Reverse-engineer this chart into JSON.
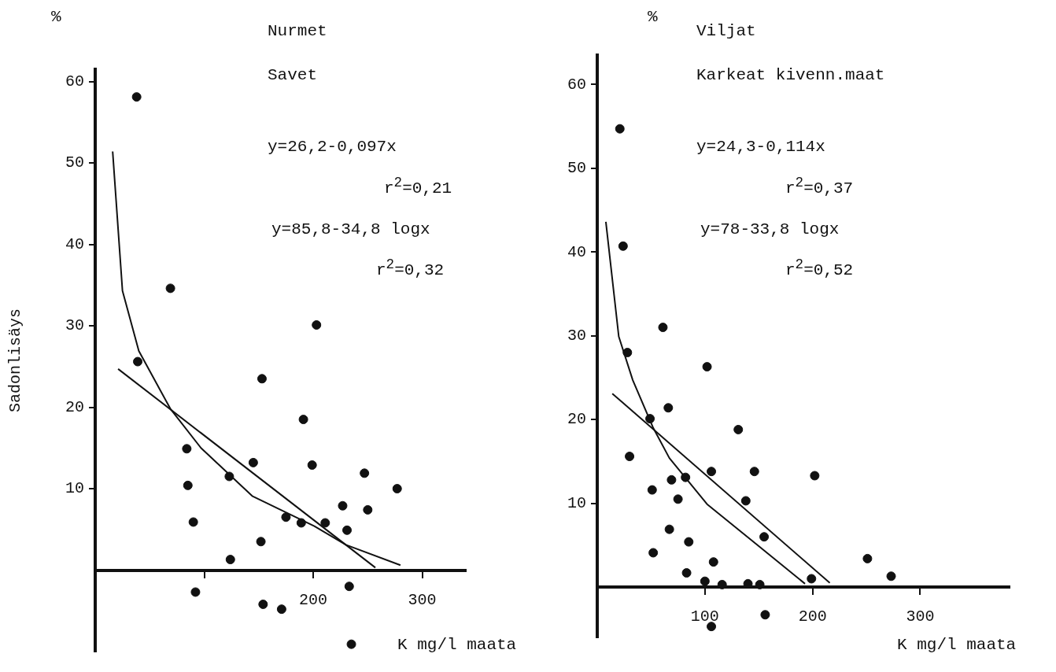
{
  "chart_data": [
    {
      "type": "scatter",
      "title": "Nurmet",
      "subtitle": "Savet",
      "xlabel": "K mg/l maata",
      "ylabel": "Sadonlisäys",
      "annotations": [
        "%",
        "y=26,2-0,097x",
        "r$^{2}$=0,21",
        "y=85,8-34,8 logx",
        "r$^{2}$=0,32"
      ],
      "xlim": [
        0,
        340
      ],
      "xticks": [
        {
          "value": 100,
          "label": null
        },
        200,
        300
      ],
      "ylim": [
        -10,
        61.5
      ],
      "yticks": [
        10,
        20,
        30,
        40,
        50,
        60
      ],
      "grid": false,
      "legend": false,
      "series": [
        {
          "type": "scatter",
          "marker": "circle",
          "color": "#111111",
          "x": [
            38,
            69,
            203,
            39,
            153,
            191,
            84,
            145,
            199,
            247,
            123,
            85,
            277,
            227,
            250,
            90,
            175,
            189,
            211,
            231,
            152,
            124,
            92,
            154,
            171,
            233,
            235
          ],
          "values": [
            58.1,
            34.6,
            30.1,
            25.6,
            23.5,
            18.5,
            14.9,
            13.2,
            12.9,
            11.9,
            11.5,
            10.4,
            10.0,
            7.9,
            7.4,
            5.9,
            6.5,
            5.8,
            5.8,
            4.9,
            3.5,
            1.3,
            -2.7,
            -4.2,
            -4.8,
            -2.0,
            -9.1
          ]
        },
        {
          "type": "line",
          "marker": "none",
          "line_style": "solid",
          "color": "#111111",
          "x": [
            21,
            257
          ],
          "values": [
            24.7,
            0.3
          ]
        },
        {
          "type": "line",
          "marker": "none",
          "line_style": "solid",
          "color": "#111111",
          "x": [
            16,
            25,
            40,
            69,
            97,
            144,
            201,
            230,
            280
          ],
          "values": [
            51.4,
            34.3,
            26.9,
            19.8,
            15.0,
            9.1,
            5.4,
            3.1,
            0.6
          ]
        }
      ]
    },
    {
      "type": "scatter",
      "title": "Viljat",
      "subtitle": "Karkeat kivenn.maat",
      "xlabel": "K mg/l maata",
      "annotations": [
        "%",
        "y=24,3-0,114x",
        "r$^{2}$=0,37",
        "y=78-33,8 logx",
        "r$^{2}$=0,52"
      ],
      "xlim": [
        0,
        383
      ],
      "xticks": [
        100,
        200,
        300
      ],
      "ylim": [
        -6,
        63.5
      ],
      "yticks": [
        10,
        20,
        30,
        40,
        50,
        60
      ],
      "grid": false,
      "legend": false,
      "series": [
        {
          "type": "scatter",
          "marker": "circle",
          "color": "#111111",
          "x": [
            21,
            24,
            61,
            28,
            102,
            66,
            49,
            131,
            30,
            106,
            146,
            202,
            69,
            82,
            51,
            138,
            75,
            67,
            155,
            85,
            52,
            108,
            251,
            83,
            273,
            100,
            199,
            116,
            140,
            151,
            156,
            106
          ],
          "values": [
            54.7,
            40.7,
            31.0,
            28.0,
            26.3,
            21.4,
            20.1,
            18.8,
            15.6,
            13.8,
            13.8,
            13.3,
            12.8,
            13.1,
            11.6,
            10.3,
            10.5,
            6.9,
            6.0,
            5.4,
            4.1,
            3.0,
            3.4,
            1.7,
            1.3,
            0.7,
            1.0,
            0.3,
            0.4,
            0.3,
            -3.3,
            -4.7
          ]
        },
        {
          "type": "line",
          "marker": "none",
          "line_style": "solid",
          "color": "#111111",
          "x": [
            14,
            216
          ],
          "values": [
            23.1,
            0.5
          ]
        },
        {
          "type": "line",
          "marker": "none",
          "line_style": "solid",
          "color": "#111111",
          "x": [
            8,
            20,
            33,
            52,
            67,
            102,
            150,
            193
          ],
          "values": [
            43.6,
            29.9,
            24.7,
            19.0,
            15.4,
            9.9,
            4.9,
            0.4
          ]
        }
      ]
    }
  ]
}
